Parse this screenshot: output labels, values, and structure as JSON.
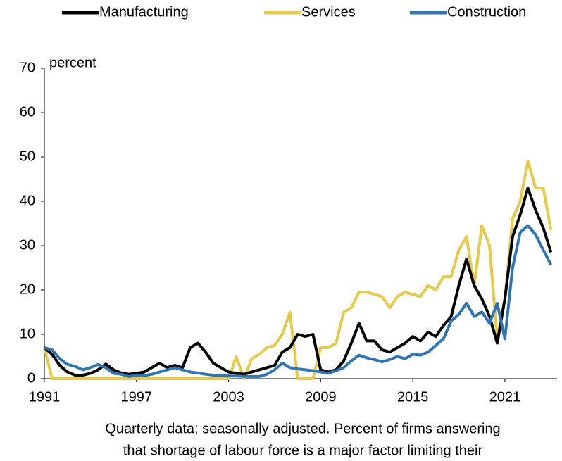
{
  "chart_data": {
    "type": "line",
    "y_label": "percent",
    "caption": [
      "Quarterly data; seasonally adjusted. Percent of firms answering",
      "that shortage of labour force is a major factor limiting their"
    ],
    "x": [
      1991,
      1991.5,
      1992,
      1992.5,
      1993,
      1993.5,
      1994,
      1994.5,
      1995,
      1995.5,
      1996,
      1996.5,
      1997,
      1997.5,
      1998,
      1998.5,
      1999,
      1999.5,
      2000,
      2000.5,
      2001,
      2001.5,
      2002,
      2002.5,
      2003,
      2003.5,
      2004,
      2004.5,
      2005,
      2005.5,
      2006,
      2006.5,
      2007,
      2007.5,
      2008,
      2008.5,
      2009,
      2009.5,
      2010,
      2010.5,
      2011,
      2011.5,
      2012,
      2012.5,
      2013,
      2013.5,
      2014,
      2014.5,
      2015,
      2015.5,
      2016,
      2016.5,
      2017,
      2017.5,
      2018,
      2018.5,
      2019,
      2019.5,
      2020,
      2020.5,
      2021,
      2021.5,
      2022,
      2022.5,
      2023,
      2023.5,
      2024
    ],
    "series": [
      {
        "name": "Manufacturing",
        "color": "#000000",
        "values": [
          7,
          5.5,
          3,
          1.5,
          0.8,
          0.8,
          1.2,
          2,
          3.3,
          2,
          1.3,
          1,
          1.2,
          1.5,
          2.5,
          3.5,
          2.5,
          3,
          2.5,
          7,
          8,
          6,
          3.5,
          2.5,
          1.5,
          1.2,
          1,
          1.5,
          2,
          2.5,
          3,
          6,
          7,
          10,
          9.5,
          10,
          2,
          1.5,
          2,
          4,
          8,
          12.5,
          8.5,
          8.5,
          6.5,
          6,
          7,
          8,
          9.5,
          8.5,
          10.5,
          9.5,
          12,
          14,
          21,
          27,
          21,
          18,
          14,
          8,
          18,
          32,
          37,
          43,
          38,
          34,
          28.5
        ]
      },
      {
        "name": "Services",
        "color": "#e8c94a",
        "values": [
          7,
          0,
          0,
          0,
          0,
          0,
          0,
          0,
          0,
          0,
          0,
          0,
          0,
          0,
          0,
          0,
          0,
          0,
          0,
          0,
          0,
          0,
          0,
          0,
          0,
          5,
          0,
          4.5,
          5.5,
          7,
          7.5,
          10,
          15,
          0,
          0,
          0,
          7,
          7,
          8,
          15,
          16,
          19.5,
          19.5,
          19,
          18.5,
          16,
          18.5,
          19.5,
          19,
          18.5,
          21,
          20,
          23,
          23,
          29,
          32,
          21,
          34.5,
          30,
          9,
          18,
          36,
          40,
          49,
          43,
          43,
          33.5
        ]
      },
      {
        "name": "Construction",
        "color": "#2e75b6",
        "values": [
          7,
          6.5,
          4.5,
          3.2,
          2.8,
          2,
          2.5,
          3.2,
          2.5,
          1.2,
          1,
          0.5,
          0.8,
          0.7,
          1,
          1.5,
          2,
          2.5,
          2,
          1.5,
          1.3,
          1,
          0.8,
          0.7,
          0.6,
          0.6,
          0.5,
          0.5,
          0.5,
          1,
          2,
          3.5,
          2.5,
          2.2,
          2,
          1.8,
          1.5,
          1.2,
          1.8,
          2.5,
          4,
          5.3,
          4.7,
          4.3,
          3.8,
          4.3,
          5,
          4.5,
          5.5,
          5.3,
          6,
          7.5,
          9,
          13,
          14.5,
          17,
          14,
          15,
          12.5,
          17,
          9,
          25,
          33,
          34.5,
          32.5,
          29,
          25.7
        ]
      }
    ],
    "xlim": [
      1991,
      2024.4
    ],
    "xticks": [
      1991,
      1997,
      2003,
      2009,
      2015,
      2021
    ],
    "ylim": [
      0,
      70
    ],
    "yticks": [
      0,
      10,
      20,
      30,
      40,
      50,
      60,
      70
    ],
    "grid": false,
    "legend": "top"
  }
}
